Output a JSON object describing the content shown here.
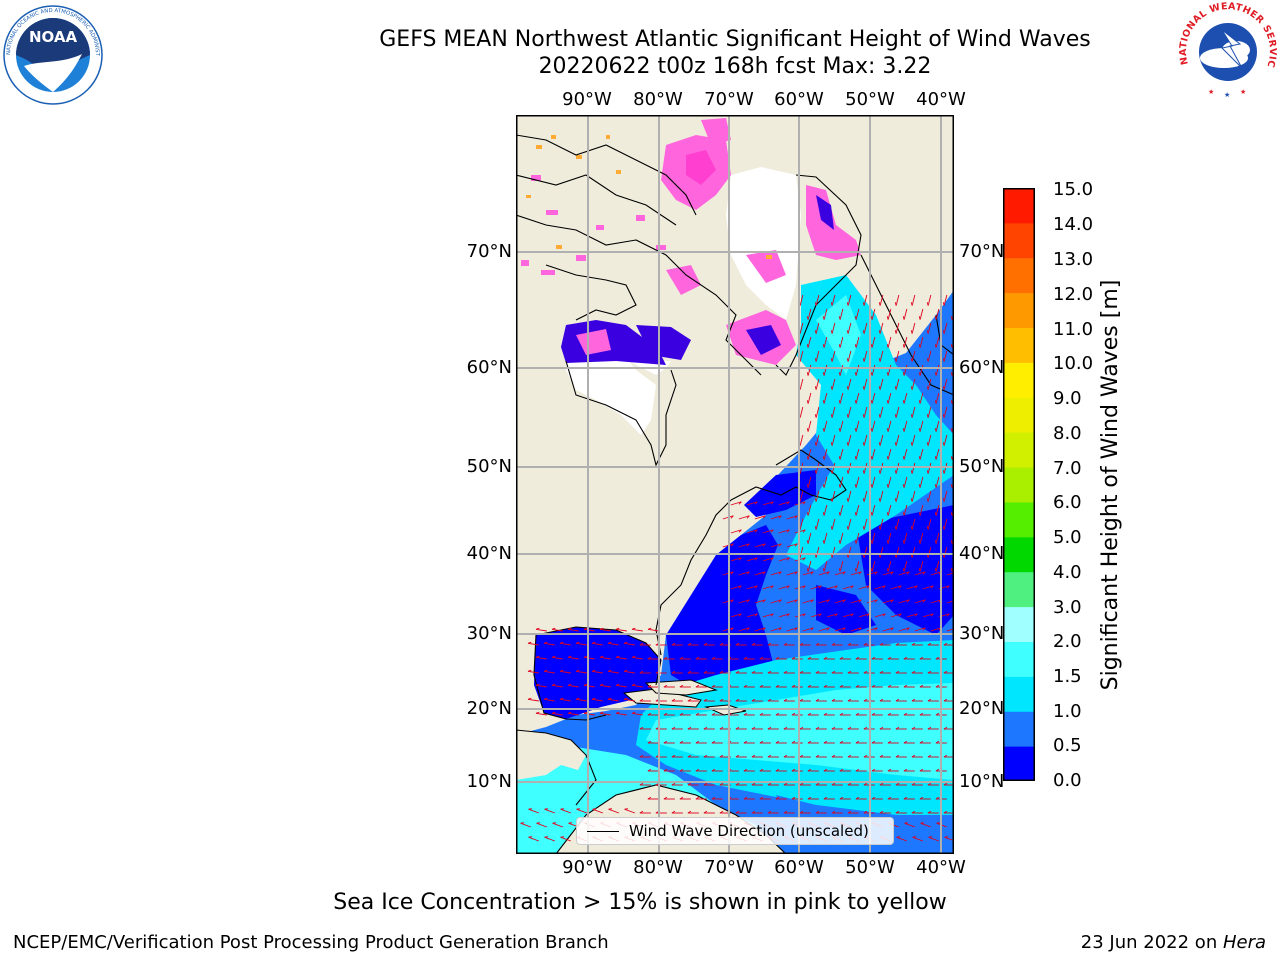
{
  "header": {
    "title": "GEFS MEAN Northwest Atlantic Significant Height of Wind Waves",
    "subtitle": "20220622 t00z 168h fcst   Max: 3.22"
  },
  "logos": {
    "noaa": {
      "text": "NOAA",
      "ring_text": "NATIONAL OCEANIC AND ATMOSPHERIC ADMINISTRATION · U.S. DEPARTMENT OF COMMERCE",
      "color": "#1a5fb4"
    },
    "nws": {
      "ring_text": "NATIONAL WEATHER SERVICE",
      "color": "#e01b24"
    }
  },
  "map": {
    "lon_labels": [
      "90°W",
      "80°W",
      "70°W",
      "60°W",
      "50°W",
      "40°W"
    ],
    "lat_labels": [
      "70°N",
      "60°N",
      "50°N",
      "40°N",
      "30°N",
      "20°N",
      "10°N"
    ],
    "legend_label": "Wind Wave Direction (unscaled)",
    "colors": {
      "land": "#efecdc",
      "sea_ice": "#ff66dd",
      "arrows": "#e0001b",
      "grid": "#b0b0b0"
    }
  },
  "colorbar": {
    "title": "Significant Height of Wind Waves [m]",
    "ticks": [
      "15.0",
      "14.0",
      "13.0",
      "12.0",
      "11.0",
      "10.0",
      "9.0",
      "8.0",
      "7.0",
      "6.0",
      "5.0",
      "4.0",
      "3.0",
      "2.0",
      "1.5",
      "1.0",
      "0.5",
      "0.0"
    ],
    "colors": [
      "#0000ff",
      "#1e78ff",
      "#00e6ff",
      "#40ffff",
      "#a0ffff",
      "#50f080",
      "#00d800",
      "#55ee00",
      "#aaee00",
      "#d0f000",
      "#eeee00",
      "#ffee00",
      "#ffbf00",
      "#ff9900",
      "#ff7000",
      "#ff4400",
      "#ff1a00"
    ]
  },
  "note": "Sea Ice Concentration > 15% is shown in pink to yellow",
  "footer": {
    "left": "NCEP/EMC/Verification Post Processing Product Generation Branch",
    "date": "23 Jun 2022 on ",
    "machine": "Hera"
  }
}
